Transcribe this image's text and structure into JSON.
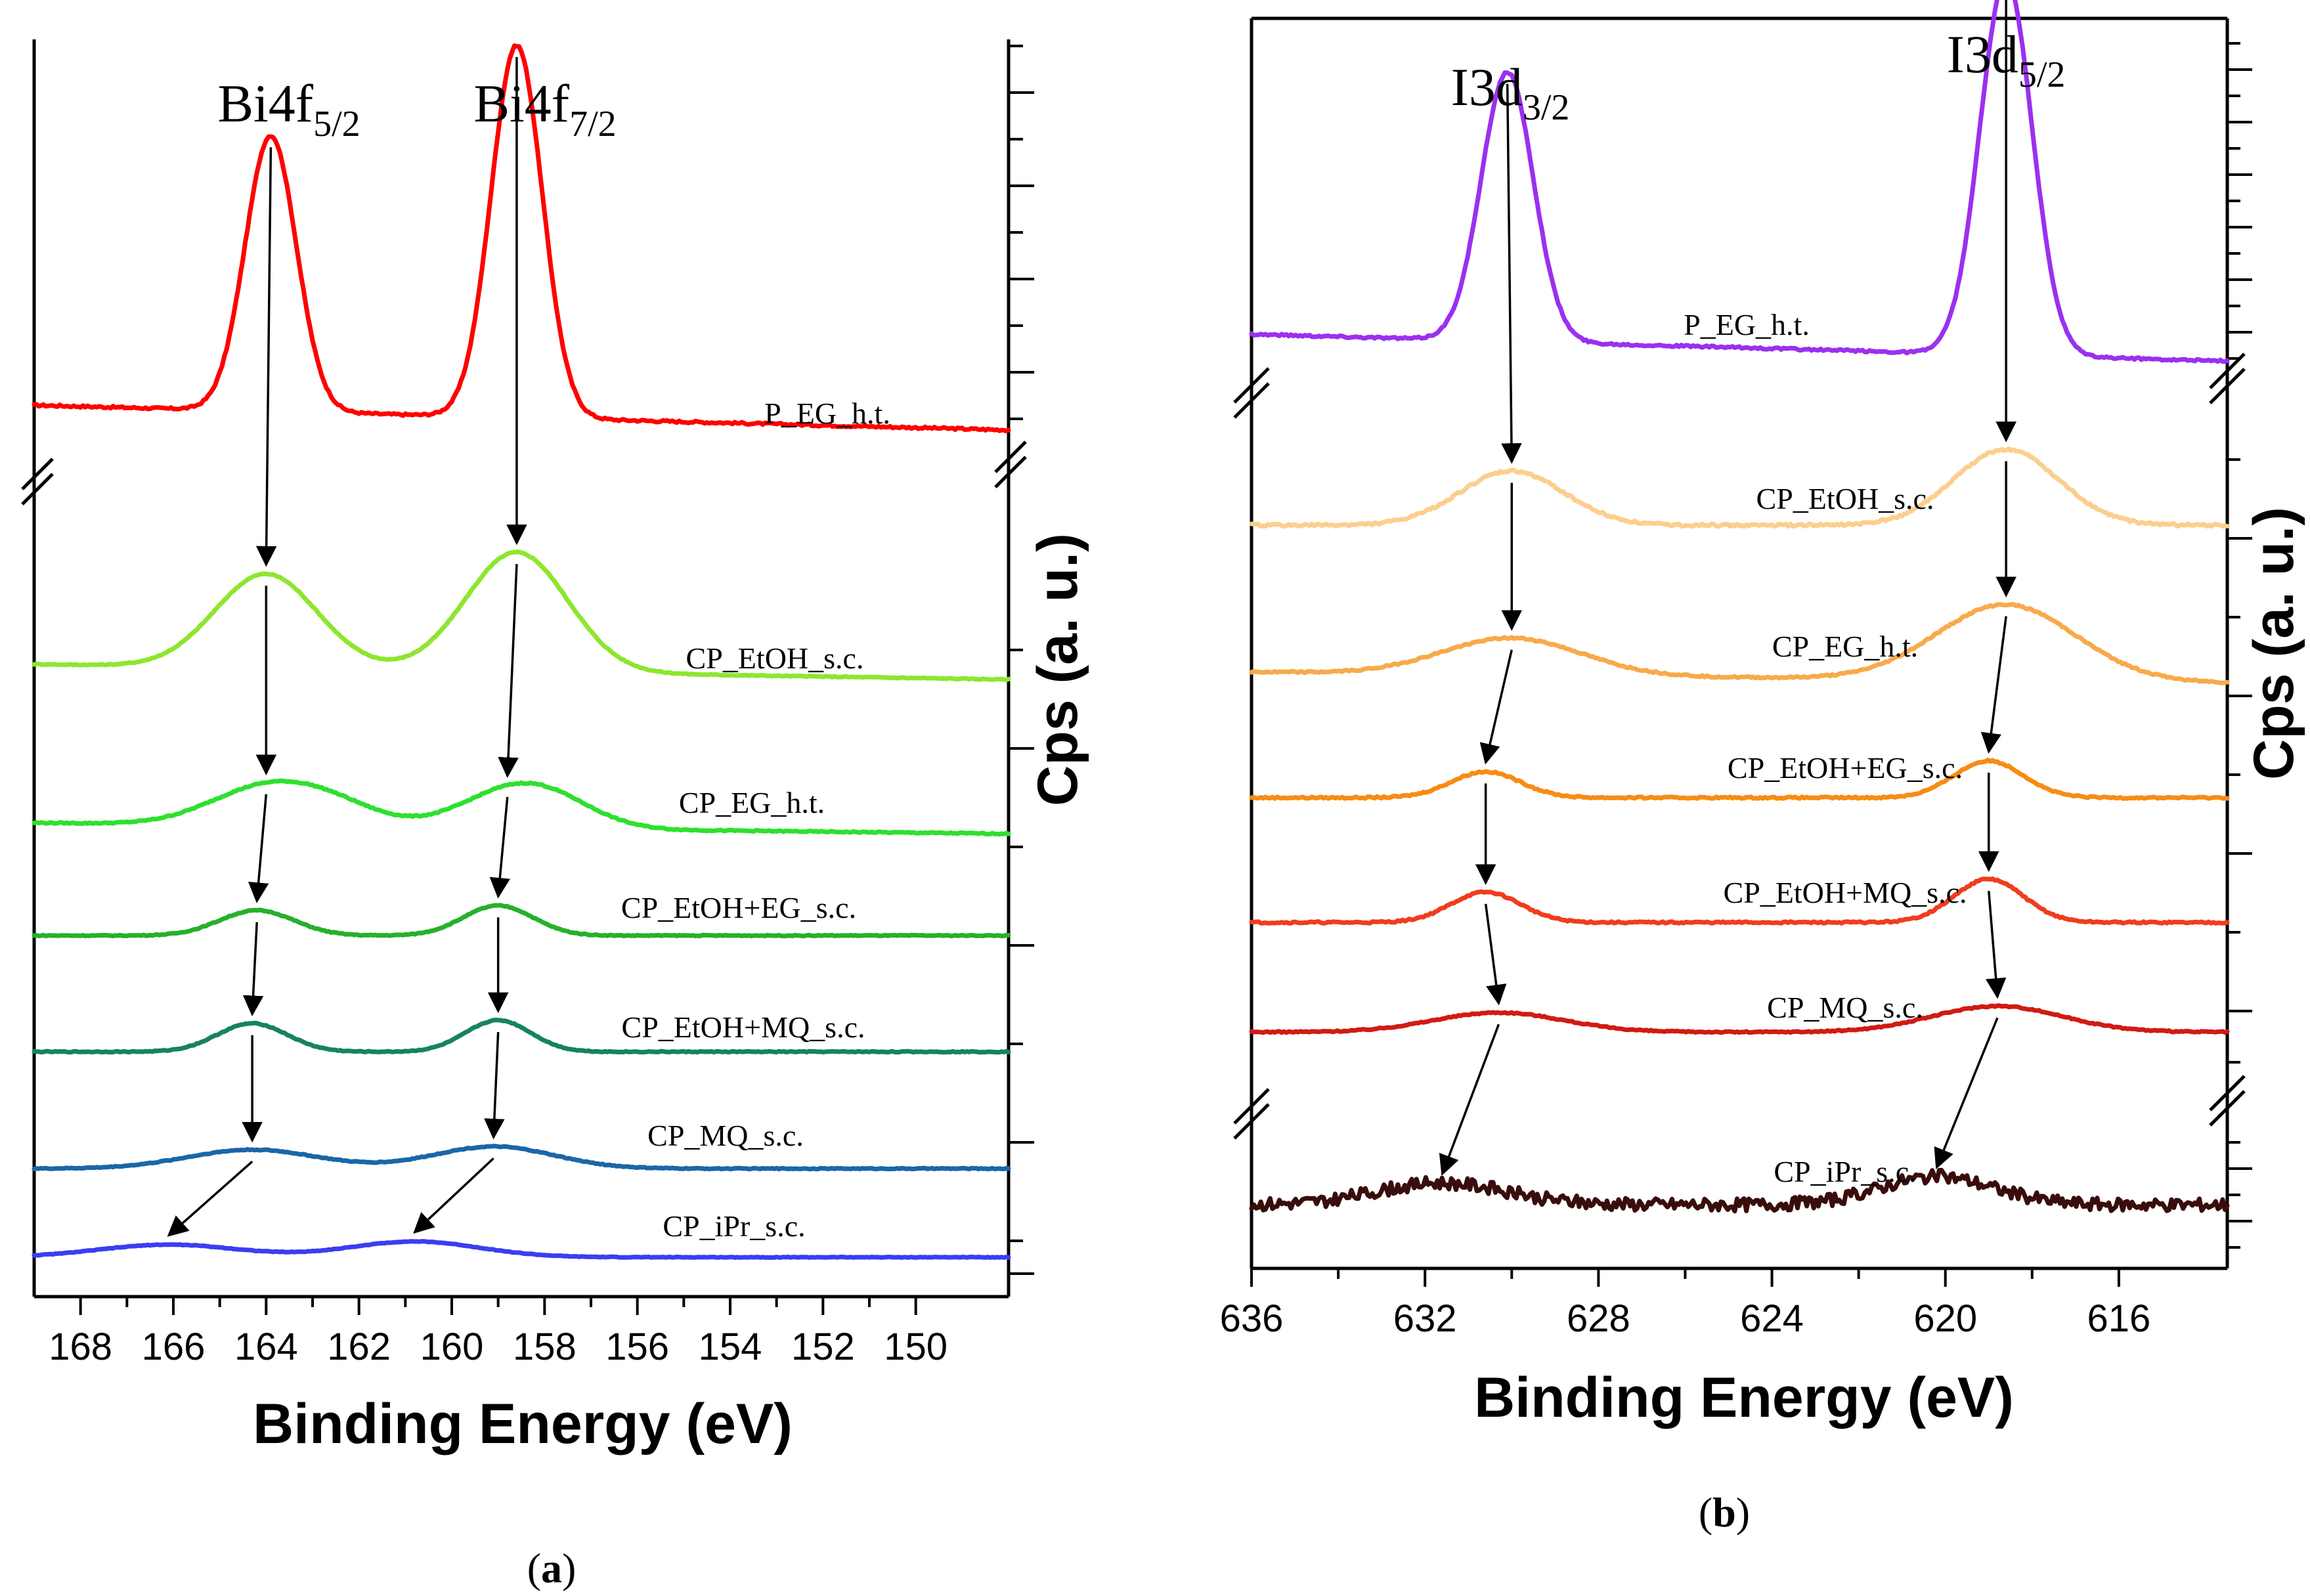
{
  "chart_data": [
    {
      "panel": "(a)",
      "panel_letter": "a",
      "type": "line",
      "xlabel": "Binding Energy (eV)",
      "ylabel": "Cps (a. u.)",
      "xlim": [
        169.0,
        148.0
      ],
      "x_ticks": [
        168,
        166,
        164,
        162,
        160,
        158,
        156,
        154,
        152,
        150
      ],
      "peak_labels": [
        {
          "main": "Bi4f",
          "sub": "5/2",
          "x": 164.0
        },
        {
          "main": "Bi4f",
          "sub": "7/2",
          "x": 158.6
        }
      ],
      "series": [
        {
          "name": "P_EG_h.t.",
          "color": "#ff0000",
          "base": 0.0,
          "peaks": [
            {
              "x": 163.9,
              "height": 1.0,
              "width": 0.55
            },
            {
              "x": 158.6,
              "height": 1.35,
              "width": 0.55
            }
          ],
          "baseline_start": 0.09,
          "baseline_end": 0.0,
          "noise": 0.004
        },
        {
          "name": "CP_EtOH_s.c.",
          "color": "#8ee62d",
          "base": 0.0,
          "peaks": [
            {
              "x": 164.0,
              "height": 0.55,
              "width": 1.1
            },
            {
              "x": 158.6,
              "height": 0.7,
              "width": 1.1
            }
          ],
          "baseline_start": 0.09,
          "baseline_end": 0.0,
          "noise": 0.003
        },
        {
          "name": "CP_EG_h.t.",
          "color": "#2ee02e",
          "base": 0.0,
          "peaks": [
            {
              "x": 164.0,
              "height": 0.24,
              "width": 1.2
            },
            {
              "x": 162.5,
              "height": 0.1,
              "width": 1.0
            },
            {
              "x": 158.8,
              "height": 0.2,
              "width": 1.1
            },
            {
              "x": 157.8,
              "height": 0.12,
              "width": 1.0
            }
          ],
          "baseline_start": 0.07,
          "baseline_end": 0.0,
          "noise": 0.004
        },
        {
          "name": "CP_EtOH+EG_s.c.",
          "color": "#26b02c",
          "base": 0.0,
          "peaks": [
            {
              "x": 164.2,
              "height": 0.16,
              "width": 0.8
            },
            {
              "x": 159.0,
              "height": 0.19,
              "width": 0.75
            }
          ],
          "baseline_start": 0.0,
          "baseline_end": 0.0,
          "noise": 0.003
        },
        {
          "name": "CP_EtOH+MQ_s.c.",
          "color": "#17845a",
          "base": 0.0,
          "peaks": [
            {
              "x": 164.3,
              "height": 0.18,
              "width": 0.75
            },
            {
              "x": 159.0,
              "height": 0.2,
              "width": 0.7
            }
          ],
          "baseline_start": 0.0,
          "baseline_end": 0.0,
          "noise": 0.003
        },
        {
          "name": "CP_MQ_s.c.",
          "color": "#1b66a6",
          "base": 0.0,
          "peaks": [
            {
              "x": 164.3,
              "height": 0.12,
              "width": 1.4
            },
            {
              "x": 159.1,
              "height": 0.14,
              "width": 1.3
            }
          ],
          "baseline_start": 0.0,
          "baseline_end": 0.0,
          "noise": 0.003
        },
        {
          "name": "CP_iPr_s.c.",
          "color": "#3a3ef0",
          "base": 0.0,
          "peaks": [
            {
              "x": 166.1,
              "height": 0.08,
              "width": 1.5
            },
            {
              "x": 160.8,
              "height": 0.1,
              "width": 1.4
            }
          ],
          "baseline_start": 0.0,
          "baseline_end": 0.0,
          "noise": 0.002
        }
      ]
    },
    {
      "panel": "(b)",
      "panel_letter": "b",
      "type": "line",
      "xlabel": "Binding Energy (eV)",
      "ylabel": "Cps (a. u.)",
      "xlim": [
        636.0,
        613.5
      ],
      "x_ticks": [
        636,
        632,
        628,
        624,
        620,
        616
      ],
      "peak_labels": [
        {
          "main": "I3d",
          "sub": "3/2",
          "x": 630.2
        },
        {
          "main": "I3d",
          "sub": "5/2",
          "x": 618.6
        }
      ],
      "series": [
        {
          "name": "P_EG_h.t.",
          "color": "#9b30ef",
          "base": 0.0,
          "peaks": [
            {
              "x": 630.1,
              "height": 1.0,
              "width": 0.6
            },
            {
              "x": 618.6,
              "height": 1.4,
              "width": 0.6
            }
          ],
          "baseline_start": 0.1,
          "baseline_end": 0.0,
          "noise": 0.004
        },
        {
          "name": "CP_EtOH_s.c.",
          "color": "#fcce8e",
          "base": 0.0,
          "peaks": [
            {
              "x": 630.0,
              "height": 0.25,
              "width": 1.2
            },
            {
              "x": 618.6,
              "height": 0.35,
              "width": 1.2
            }
          ],
          "baseline_start": 0.0,
          "baseline_end": 0.0,
          "noise": 0.006
        },
        {
          "name": "CP_EG_h.t.",
          "color": "#f8aa4a",
          "base": 0.0,
          "peaks": [
            {
              "x": 630.0,
              "height": 0.17,
              "width": 1.6
            },
            {
              "x": 618.6,
              "height": 0.35,
              "width": 1.6
            }
          ],
          "baseline_start": 0.05,
          "baseline_end": 0.0,
          "noise": 0.004
        },
        {
          "name": "CP_EtOH+EG_s.c.",
          "color": "#f78c14",
          "base": 0.0,
          "peaks": [
            {
              "x": 630.6,
              "height": 0.12,
              "width": 0.8
            },
            {
              "x": 619.0,
              "height": 0.17,
              "width": 0.8
            }
          ],
          "baseline_start": 0.0,
          "baseline_end": 0.0,
          "noise": 0.004
        },
        {
          "name": "CP_EtOH+MQ_s.c.",
          "color": "#f03c1e",
          "base": 0.0,
          "peaks": [
            {
              "x": 630.6,
              "height": 0.14,
              "width": 0.8
            },
            {
              "x": 619.0,
              "height": 0.2,
              "width": 0.8
            }
          ],
          "baseline_start": 0.0,
          "baseline_end": 0.0,
          "noise": 0.004
        },
        {
          "name": "CP_MQ_s.c.",
          "color": "#d21a14",
          "base": 0.0,
          "peaks": [
            {
              "x": 630.3,
              "height": 0.09,
              "width": 1.5
            },
            {
              "x": 618.8,
              "height": 0.12,
              "width": 1.5
            }
          ],
          "baseline_start": 0.0,
          "baseline_end": 0.0,
          "noise": 0.003
        },
        {
          "name": "CP_iPr_s.c.",
          "color": "#3a0d0d",
          "base": 0.0,
          "peaks": [
            {
              "x": 631.6,
              "height": 0.1,
              "width": 1.5
            },
            {
              "x": 620.2,
              "height": 0.13,
              "width": 1.3
            }
          ],
          "baseline_start": 0.0,
          "baseline_end": 0.0,
          "noise": 0.03
        }
      ]
    }
  ]
}
